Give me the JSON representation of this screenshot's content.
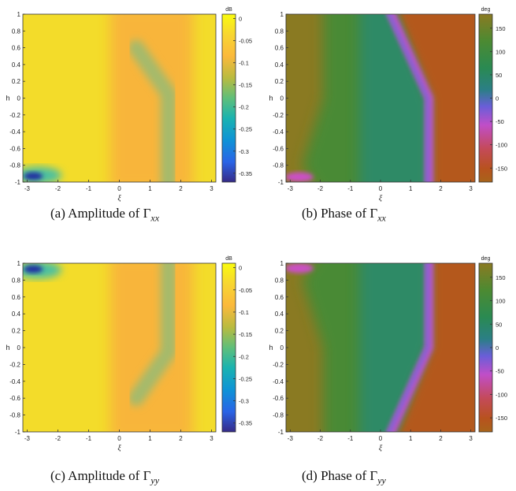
{
  "chart_data": [
    {
      "type": "heatmap",
      "caption": "(a) Amplitude of Γxx",
      "caption_parts": {
        "tag": "(a) Amplitude of",
        "gamma": "Γ",
        "sub": "xx"
      },
      "xlabel": "ξ",
      "ylabel": "h",
      "xlim": [
        -3.14,
        3.14
      ],
      "ylim": [
        -1,
        1
      ],
      "xticks": [
        -3,
        -2,
        -1,
        0,
        1,
        2,
        3
      ],
      "yticks": [
        1,
        0.8,
        0.6,
        0.4,
        0.2,
        0,
        -0.2,
        -0.4,
        -0.6,
        -0.8,
        -1
      ],
      "colorbar": {
        "unit": "dB",
        "range": [
          -0.37,
          0.01
        ],
        "ticks": [
          "0",
          "-0.05",
          "-0.1",
          "-0.15",
          "-0.2",
          "-0.25",
          "-0.3",
          "-0.35"
        ],
        "colormap": "parula"
      },
      "features": "Mostly yellow (~0 dB). Orange band (~-0.05 dB) for ξ from 0 to 2. Green ridge (~-0.15 dB) from (0.5, 0.6) to (1.6, 0) then vertical at ξ≈1.6 down to h=-1. Dark blue minimum (~-0.36 dB) near ξ=-2.8, h=-0.93."
    },
    {
      "type": "heatmap",
      "caption": "(b) Phase of Γxx",
      "caption_parts": {
        "tag": "(b) Phase of",
        "gamma": "Γ",
        "sub": "xx"
      },
      "xlabel": "ξ",
      "ylabel": "h",
      "xlim": [
        -3.14,
        3.14
      ],
      "ylim": [
        -1,
        1
      ],
      "xticks": [
        -3,
        -2,
        -1,
        0,
        1,
        2,
        3
      ],
      "yticks": [
        1,
        0.8,
        0.6,
        0.4,
        0.2,
        0,
        -0.2,
        -0.4,
        -0.6,
        -0.8,
        -1
      ],
      "colorbar": {
        "unit": "deg",
        "range": [
          -180,
          180
        ],
        "ticks": [
          "150",
          "100",
          "50",
          "0",
          "-50",
          "-100",
          "-150"
        ],
        "colormap": "hsv-muted"
      },
      "features": "Olive/brown left region, green then teal toward center, sharp magenta transition along boundary from (0.3, 1) to (1.6, 0) then down to (1.6, -1); red-orange region on right. Magenta spot near ξ=-2.8, h=-0.93."
    },
    {
      "type": "heatmap",
      "caption": "(c) Amplitude of Γyy",
      "caption_parts": {
        "tag": "(c) Amplitude of",
        "gamma": "Γ",
        "sub": "yy"
      },
      "xlabel": "ξ",
      "ylabel": "h",
      "xlim": [
        -3.14,
        3.14
      ],
      "ylim": [
        -1,
        1
      ],
      "xticks": [
        -3,
        -2,
        -1,
        0,
        1,
        2,
        3
      ],
      "yticks": [
        1,
        0.8,
        0.6,
        0.4,
        0.2,
        0,
        -0.2,
        -0.4,
        -0.6,
        -0.8,
        -1
      ],
      "colorbar": {
        "unit": "dB",
        "range": [
          -0.37,
          0.01
        ],
        "ticks": [
          "0",
          "-0.05",
          "-0.1",
          "-0.15",
          "-0.2",
          "-0.25",
          "-0.3",
          "-0.35"
        ],
        "colormap": "parula"
      },
      "features": "Vertical mirror of (a): dark blue minimum near ξ=-2.8, h=0.93; green ridge vertical at ξ≈1.6 from h=1 to 0 then bends to (0.5, -0.6)."
    },
    {
      "type": "heatmap",
      "caption": "(d) Phase of Γyy",
      "caption_parts": {
        "tag": "(d) Phase of",
        "gamma": "Γ",
        "sub": "yy"
      },
      "xlabel": "ξ",
      "ylabel": "h",
      "xlim": [
        -3.14,
        3.14
      ],
      "ylim": [
        -1,
        1
      ],
      "xticks": [
        -3,
        -2,
        -1,
        0,
        1,
        2,
        3
      ],
      "yticks": [
        1,
        0.8,
        0.6,
        0.4,
        0.2,
        0,
        -0.2,
        -0.4,
        -0.6,
        -0.8,
        -1
      ],
      "colorbar": {
        "unit": "deg",
        "range": [
          -180,
          180
        ],
        "ticks": [
          "150",
          "100",
          "50",
          "0",
          "-50",
          "-100",
          "-150"
        ],
        "colormap": "hsv-muted"
      },
      "features": "Vertical mirror of (b): magenta spot near ξ=-2.8, h=0.93; boundary vertical at ξ≈1.6 from h=1 to 0 then slanting to (0.3, -1)."
    }
  ]
}
